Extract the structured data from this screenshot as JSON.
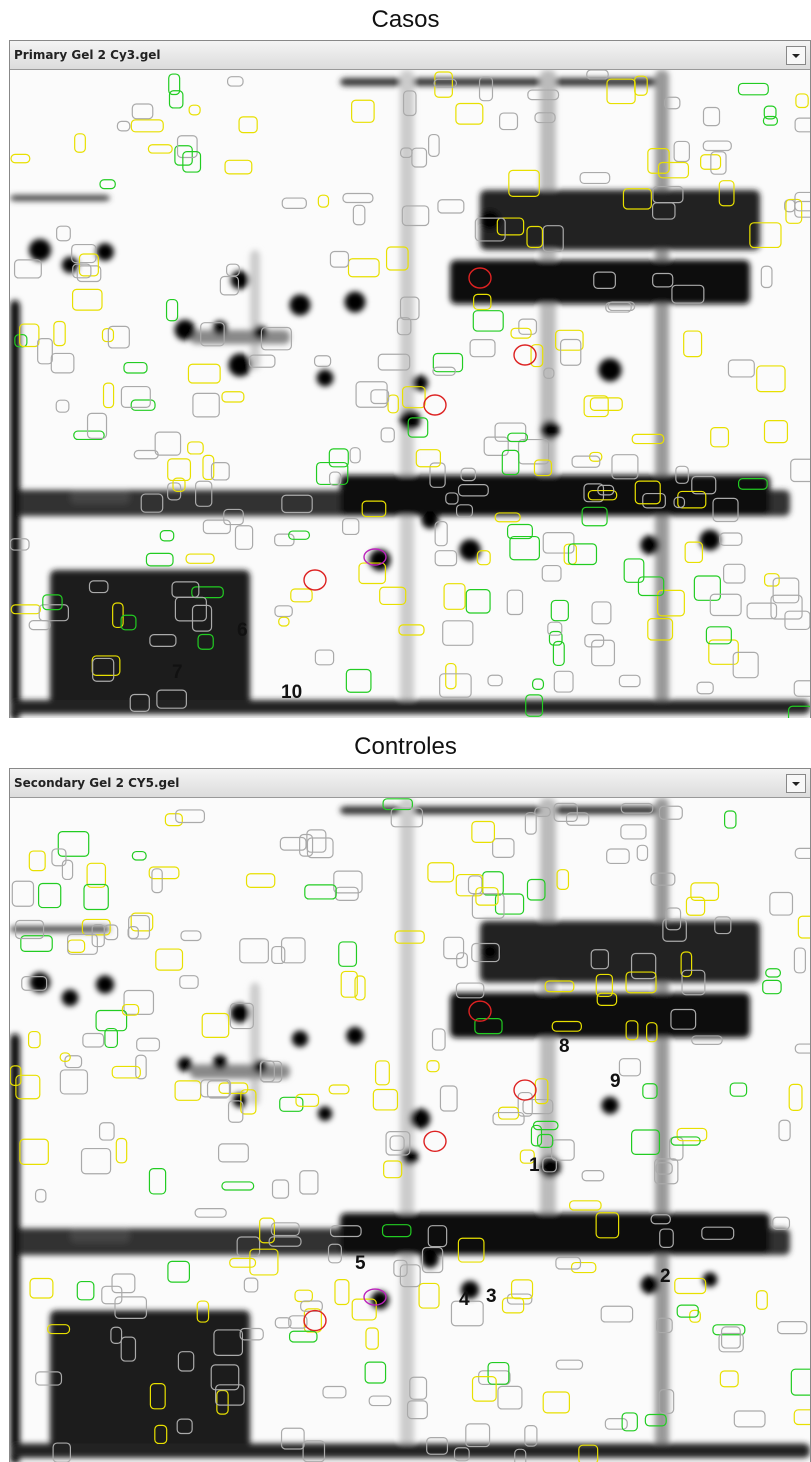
{
  "panels": [
    {
      "title": "Casos",
      "window_title": "Primary Gel 2 Cy3.gel",
      "spot_labels": [
        "6",
        "7",
        "10"
      ]
    },
    {
      "title": "Controles",
      "window_title": "Secondary Gel 2 CY5.gel",
      "spot_labels": [
        "8",
        "9",
        "1",
        "5",
        "4",
        "3",
        "2"
      ]
    }
  ]
}
